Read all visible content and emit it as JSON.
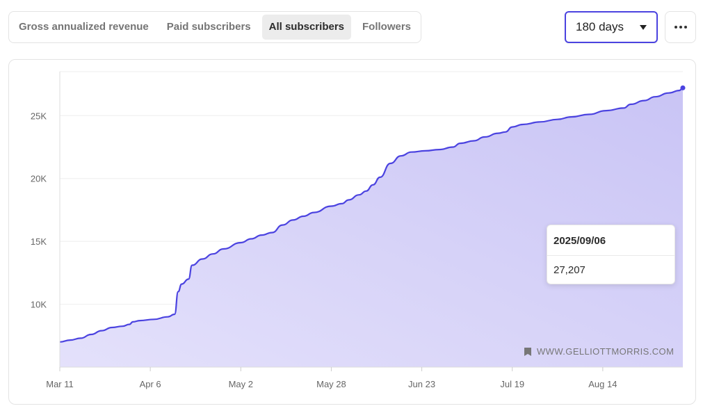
{
  "tabs": [
    {
      "label": "Gross annualized revenue",
      "active": false
    },
    {
      "label": "Paid subscribers",
      "active": false
    },
    {
      "label": "All subscribers",
      "active": true
    },
    {
      "label": "Followers",
      "active": false
    }
  ],
  "range_select": {
    "value": "180 days"
  },
  "tooltip": {
    "date": "2025/09/06",
    "value": "27,207"
  },
  "watermark": {
    "text": "WWW.GELLIOTTMORRIS.COM",
    "icon": "bookmark-icon"
  },
  "colors": {
    "line": "#4b43e0",
    "fill_top": "#c9c4f5",
    "fill_bottom": "#e4e1fb",
    "grid": "#eeeeee"
  },
  "chart_data": {
    "type": "area",
    "title": "",
    "xlabel": "",
    "ylabel": "",
    "x_ticks": [
      "Mar 11",
      "Apr 6",
      "May 2",
      "May 28",
      "Jun 23",
      "Jul 19",
      "Aug 14"
    ],
    "y_ticks": [
      "10K",
      "15K",
      "20K",
      "25K"
    ],
    "y_tick_values": [
      10000,
      15000,
      20000,
      25000
    ],
    "ylim": [
      5000,
      28500
    ],
    "xlim": [
      "2025-03-11",
      "2025-09-06"
    ],
    "grid": true,
    "series": [
      {
        "points": [
          [
            "2025-03-11",
            7000
          ],
          [
            "2025-03-14",
            7150
          ],
          [
            "2025-03-17",
            7300
          ],
          [
            "2025-03-20",
            7600
          ],
          [
            "2025-03-23",
            7900
          ],
          [
            "2025-03-26",
            8150
          ],
          [
            "2025-03-29",
            8250
          ],
          [
            "2025-03-31",
            8400
          ],
          [
            "2025-04-01",
            8600
          ],
          [
            "2025-04-03",
            8700
          ],
          [
            "2025-04-07",
            8800
          ],
          [
            "2025-04-11",
            9000
          ],
          [
            "2025-04-13",
            9200
          ],
          [
            "2025-04-14",
            11000
          ],
          [
            "2025-04-15",
            11600
          ],
          [
            "2025-04-17",
            12000
          ],
          [
            "2025-04-18",
            13100
          ],
          [
            "2025-04-21",
            13600
          ],
          [
            "2025-04-24",
            14000
          ],
          [
            "2025-04-27",
            14400
          ],
          [
            "2025-05-02",
            14900
          ],
          [
            "2025-05-05",
            15200
          ],
          [
            "2025-05-08",
            15500
          ],
          [
            "2025-05-11",
            15700
          ],
          [
            "2025-05-14",
            16300
          ],
          [
            "2025-05-17",
            16700
          ],
          [
            "2025-05-20",
            17000
          ],
          [
            "2025-05-23",
            17300
          ],
          [
            "2025-05-28",
            17800
          ],
          [
            "2025-05-31",
            18000
          ],
          [
            "2025-06-02",
            18300
          ],
          [
            "2025-06-05",
            18700
          ],
          [
            "2025-06-07",
            19000
          ],
          [
            "2025-06-09",
            19500
          ],
          [
            "2025-06-11",
            20100
          ],
          [
            "2025-06-14",
            21200
          ],
          [
            "2025-06-17",
            21800
          ],
          [
            "2025-06-20",
            22100
          ],
          [
            "2025-06-24",
            22200
          ],
          [
            "2025-06-28",
            22300
          ],
          [
            "2025-07-02",
            22500
          ],
          [
            "2025-07-04",
            22800
          ],
          [
            "2025-07-08",
            23000
          ],
          [
            "2025-07-11",
            23300
          ],
          [
            "2025-07-15",
            23600
          ],
          [
            "2025-07-17",
            23700
          ],
          [
            "2025-07-19",
            24100
          ],
          [
            "2025-07-22",
            24300
          ],
          [
            "2025-07-27",
            24500
          ],
          [
            "2025-08-01",
            24700
          ],
          [
            "2025-08-05",
            24900
          ],
          [
            "2025-08-10",
            25100
          ],
          [
            "2025-08-15",
            25400
          ],
          [
            "2025-08-20",
            25600
          ],
          [
            "2025-08-22",
            25900
          ],
          [
            "2025-08-26",
            26200
          ],
          [
            "2025-08-29",
            26500
          ],
          [
            "2025-09-02",
            26800
          ],
          [
            "2025-09-05",
            27000
          ],
          [
            "2025-09-06",
            27207
          ]
        ]
      }
    ],
    "highlight": {
      "x": "2025-09-06",
      "y": 27207
    }
  }
}
